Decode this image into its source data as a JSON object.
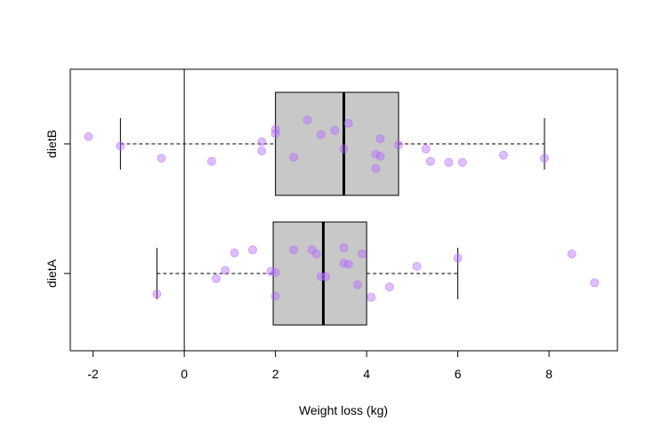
{
  "chart_data": {
    "type": "boxplot",
    "orientation": "horizontal",
    "xlabel": "Weight loss (kg)",
    "ylabel": "",
    "xlim": [
      -2.5,
      9.5
    ],
    "xticks": [
      -2,
      0,
      2,
      4,
      6,
      8
    ],
    "xtick_labels": [
      "-2",
      "0",
      "2",
      "4",
      "6",
      "8"
    ],
    "reference_line_x": 0,
    "colors": {
      "box_fill": "#c8c8c8",
      "points": "#b366ff",
      "median": "#000000"
    },
    "groups": [
      {
        "name": "dietA",
        "whisker_low": -0.6,
        "q1": 1.95,
        "median": 3.05,
        "q3": 4.0,
        "whisker_high": 6.0,
        "points": [
          [
            -0.6,
            -0.2
          ],
          [
            0.7,
            -0.05
          ],
          [
            0.9,
            0.03
          ],
          [
            1.1,
            0.2
          ],
          [
            1.5,
            0.23
          ],
          [
            1.9,
            0.02
          ],
          [
            2.0,
            0.01
          ],
          [
            2.0,
            -0.22
          ],
          [
            2.4,
            0.23
          ],
          [
            2.8,
            0.23
          ],
          [
            2.9,
            0.19
          ],
          [
            3.0,
            -0.03
          ],
          [
            3.1,
            -0.03
          ],
          [
            3.5,
            0.25
          ],
          [
            3.5,
            0.1
          ],
          [
            3.6,
            0.09
          ],
          [
            3.8,
            -0.11
          ],
          [
            3.9,
            0.19
          ],
          [
            4.1,
            -0.23
          ],
          [
            4.5,
            -0.13
          ],
          [
            5.1,
            0.07
          ],
          [
            6.0,
            0.15
          ],
          [
            8.5,
            0.19
          ],
          [
            9.0,
            -0.09
          ]
        ]
      },
      {
        "name": "dietB",
        "whisker_low": -1.4,
        "q1": 2.0,
        "median": 3.5,
        "q3": 4.7,
        "whisker_high": 7.9,
        "points": [
          [
            -2.1,
            0.07
          ],
          [
            -1.4,
            -0.02
          ],
          [
            -0.5,
            -0.14
          ],
          [
            0.6,
            -0.17
          ],
          [
            1.7,
            0.02
          ],
          [
            1.7,
            -0.07
          ],
          [
            2.0,
            0.14
          ],
          [
            2.0,
            0.1
          ],
          [
            2.4,
            -0.13
          ],
          [
            2.7,
            0.23
          ],
          [
            3.0,
            0.09
          ],
          [
            3.3,
            0.13
          ],
          [
            3.5,
            -0.05
          ],
          [
            3.6,
            0.2
          ],
          [
            4.2,
            -0.1
          ],
          [
            4.2,
            -0.24
          ],
          [
            4.3,
            0.05
          ],
          [
            4.3,
            -0.12
          ],
          [
            4.7,
            -0.01
          ],
          [
            5.3,
            -0.05
          ],
          [
            5.4,
            -0.17
          ],
          [
            5.8,
            -0.18
          ],
          [
            6.1,
            -0.18
          ],
          [
            7.0,
            -0.11
          ],
          [
            7.9,
            -0.14
          ]
        ]
      }
    ]
  }
}
